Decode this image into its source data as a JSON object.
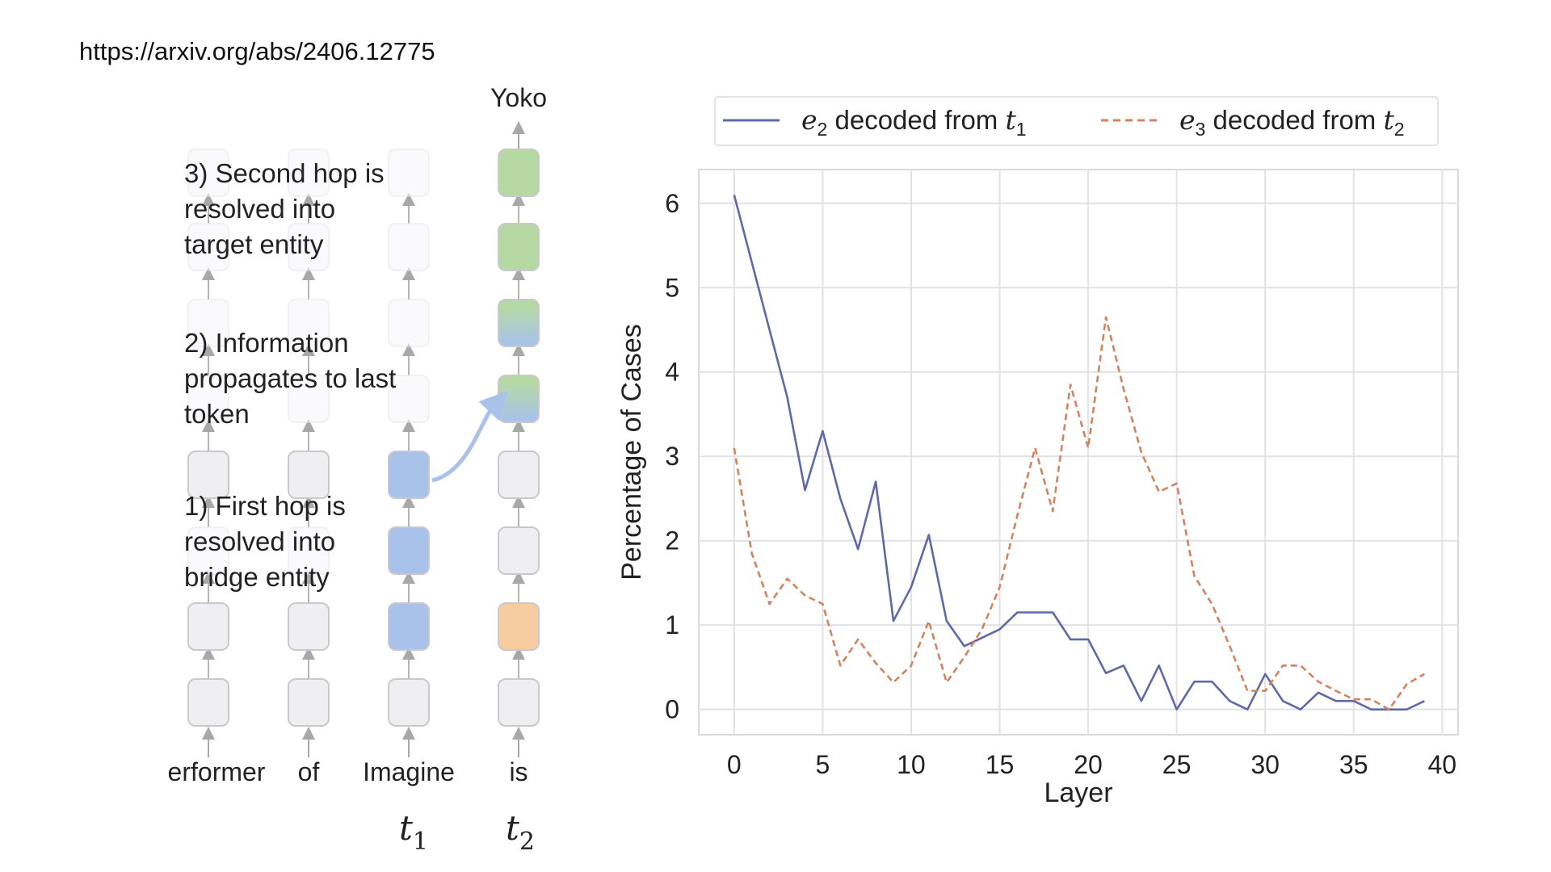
{
  "url": "https://arxiv.org/abs/2406.12775",
  "diagram": {
    "top_label": "Yoko",
    "steps": [
      {
        "lines": [
          "3) Second hop is",
          "resolved into",
          "target entity"
        ]
      },
      {
        "lines": [
          "2) Information",
          "propagates to last",
          "token"
        ]
      },
      {
        "lines": [
          "1) First hop is",
          "resolved into",
          "bridge entity"
        ]
      }
    ],
    "tokens": [
      "erformer",
      "of",
      "Imagine",
      "is"
    ],
    "t1_base": "t",
    "t1_sub": "1",
    "t2_base": "t",
    "t2_sub": "2",
    "colors": {
      "neutral": "#efeef1",
      "blue": "#a9c2ea",
      "green": "#b6d9a4",
      "orange": "#f5cda1",
      "border": "#c9c8cf"
    }
  },
  "legend": {
    "e2_base": "e",
    "e2_sub": "2",
    "e2_text": " decoded from ",
    "e2_t": "t",
    "e2_tsub": "1",
    "e3_base": "e",
    "e3_sub": "3",
    "e3_text": " decoded from ",
    "e3_t": "t",
    "e3_tsub": "2"
  },
  "chart_data": {
    "type": "line",
    "xlabel": "Layer",
    "ylabel": "Percentage of Cases",
    "xlim": [
      -2,
      40.9
    ],
    "ylim": [
      -0.3,
      6.4
    ],
    "xticks": [
      0,
      5,
      10,
      15,
      20,
      25,
      30,
      35,
      40
    ],
    "yticks": [
      0,
      1,
      2,
      3,
      4,
      5,
      6
    ],
    "grid": true,
    "legend_position": "top",
    "series": [
      {
        "name": "e2 decoded from t1",
        "color": "#5f69a6",
        "style": "solid",
        "x": [
          0,
          1,
          2,
          3,
          4,
          5,
          6,
          7,
          8,
          9,
          10,
          11,
          12,
          13,
          14,
          15,
          16,
          17,
          18,
          19,
          20,
          21,
          22,
          23,
          24,
          25,
          26,
          27,
          28,
          29,
          30,
          31,
          32,
          33,
          34,
          35,
          36,
          37,
          38,
          39
        ],
        "y": [
          6.1,
          5.3,
          4.5,
          3.7,
          2.6,
          3.3,
          2.5,
          1.9,
          2.7,
          1.05,
          1.45,
          2.07,
          1.05,
          0.75,
          0.85,
          0.95,
          1.15,
          1.15,
          1.15,
          0.83,
          0.83,
          0.43,
          0.52,
          0.1,
          0.52,
          0.0,
          0.33,
          0.33,
          0.1,
          0.0,
          0.42,
          0.1,
          0.0,
          0.2,
          0.1,
          0.1,
          0.0,
          0.0,
          0.0,
          0.1
        ]
      },
      {
        "name": "e3 decoded from t2",
        "color": "#d2835f",
        "style": "dashed",
        "x": [
          0,
          1,
          2,
          3,
          4,
          5,
          6,
          7,
          8,
          9,
          10,
          11,
          12,
          13,
          14,
          15,
          16,
          17,
          18,
          19,
          20,
          21,
          22,
          23,
          24,
          25,
          26,
          27,
          28,
          29,
          30,
          31,
          32,
          33,
          34,
          35,
          36,
          37,
          38,
          39
        ],
        "y": [
          3.1,
          1.85,
          1.25,
          1.55,
          1.35,
          1.25,
          0.52,
          0.83,
          0.55,
          0.32,
          0.52,
          1.05,
          0.32,
          0.62,
          0.95,
          1.45,
          2.3,
          3.1,
          2.35,
          3.85,
          3.1,
          4.65,
          3.8,
          3.05,
          2.58,
          2.68,
          1.58,
          1.25,
          0.75,
          0.22,
          0.22,
          0.52,
          0.52,
          0.33,
          0.22,
          0.12,
          0.12,
          0.0,
          0.3,
          0.42
        ]
      }
    ]
  }
}
